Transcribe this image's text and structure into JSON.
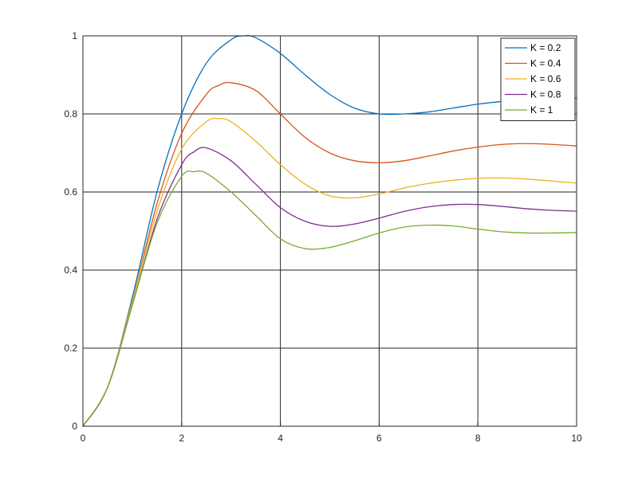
{
  "chart_data": {
    "type": "line",
    "title": "",
    "xlabel": "",
    "ylabel": "",
    "xlim": [
      0,
      10
    ],
    "ylim": [
      0,
      1
    ],
    "xticks": [
      "0",
      "2",
      "4",
      "6",
      "8",
      "10"
    ],
    "yticks": [
      "0",
      "0.2",
      "0.4",
      "0.6",
      "0.8",
      "1"
    ],
    "grid": true,
    "legend_position": "top-right",
    "series": [
      {
        "name": "K = 0.2",
        "color": "#0072BD",
        "x": [
          0,
          0.5,
          1,
          1.5,
          2,
          2.5,
          3,
          3.25,
          3.5,
          4,
          4.5,
          5,
          5.5,
          6,
          6.5,
          7,
          7.5,
          8,
          8.5,
          9,
          9.5,
          10
        ],
        "y": [
          0,
          0.1,
          0.33,
          0.6,
          0.8,
          0.93,
          0.99,
          1.0,
          0.995,
          0.955,
          0.9,
          0.85,
          0.815,
          0.8,
          0.8,
          0.805,
          0.815,
          0.825,
          0.832,
          0.836,
          0.838,
          0.84
        ]
      },
      {
        "name": "K = 0.4",
        "color": "#D95319",
        "x": [
          0,
          0.5,
          1,
          1.5,
          2,
          2.5,
          2.75,
          3,
          3.5,
          4,
          4.5,
          5,
          5.5,
          6,
          6.5,
          7,
          7.5,
          8,
          8.5,
          9,
          9.5,
          10
        ],
        "y": [
          0,
          0.1,
          0.32,
          0.57,
          0.75,
          0.85,
          0.873,
          0.88,
          0.86,
          0.8,
          0.74,
          0.7,
          0.68,
          0.675,
          0.68,
          0.692,
          0.705,
          0.715,
          0.722,
          0.724,
          0.722,
          0.718
        ]
      },
      {
        "name": "K = 0.6",
        "color": "#EDB120",
        "x": [
          0,
          0.5,
          1,
          1.5,
          2,
          2.5,
          2.75,
          3,
          3.5,
          4,
          4.5,
          5,
          5.5,
          6,
          6.5,
          7,
          7.5,
          8,
          8.5,
          9,
          9.5,
          10
        ],
        "y": [
          0,
          0.1,
          0.32,
          0.55,
          0.71,
          0.78,
          0.788,
          0.78,
          0.73,
          0.67,
          0.62,
          0.59,
          0.585,
          0.595,
          0.61,
          0.622,
          0.63,
          0.635,
          0.636,
          0.633,
          0.628,
          0.623
        ]
      },
      {
        "name": "K = 0.8",
        "color": "#7E2F8E",
        "x": [
          0,
          0.5,
          1,
          1.5,
          2,
          2.25,
          2.5,
          3,
          3.5,
          4,
          4.5,
          5,
          5.5,
          6,
          6.5,
          7,
          7.5,
          8,
          8.5,
          9,
          9.5,
          10
        ],
        "y": [
          0,
          0.1,
          0.31,
          0.53,
          0.67,
          0.703,
          0.713,
          0.68,
          0.62,
          0.56,
          0.525,
          0.512,
          0.518,
          0.533,
          0.55,
          0.562,
          0.568,
          0.568,
          0.563,
          0.557,
          0.553,
          0.551
        ]
      },
      {
        "name": "K = 1",
        "color": "#77AC30",
        "x": [
          0,
          0.5,
          1,
          1.5,
          2,
          2.25,
          2.5,
          3,
          3.5,
          4,
          4.5,
          5,
          5.5,
          6,
          6.5,
          7,
          7.5,
          8,
          8.5,
          9,
          9.5,
          10
        ],
        "y": [
          0,
          0.1,
          0.31,
          0.52,
          0.64,
          0.652,
          0.648,
          0.6,
          0.54,
          0.48,
          0.455,
          0.458,
          0.475,
          0.495,
          0.51,
          0.515,
          0.513,
          0.505,
          0.498,
          0.495,
          0.495,
          0.496
        ]
      }
    ]
  }
}
